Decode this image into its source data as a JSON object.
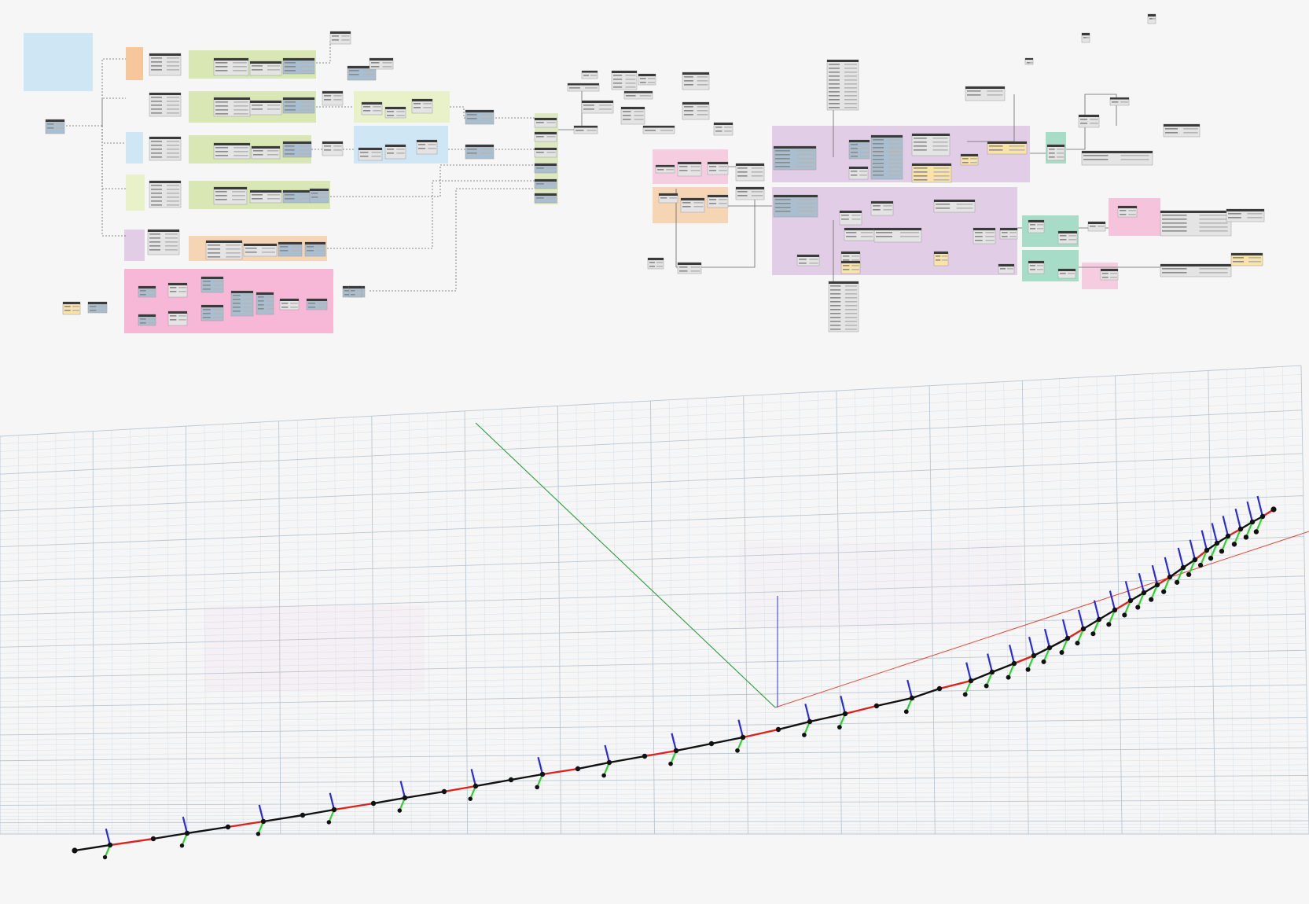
{
  "app": {
    "title": "",
    "view_modes": [
      "graph-view",
      "background-3d-preview"
    ]
  },
  "colors": {
    "canvas_bg": "#f6f6f6",
    "group_green": "#d8e7b4",
    "group_lightgreen": "#e4eec4",
    "group_blue": "#cfe6f4",
    "group_orange": "#f6d5b4",
    "group_pink": "#f6b8d6",
    "group_purple": "#e2cde6",
    "group_teal": "#a7dcc8",
    "group_yellow": "#f9e3a7",
    "node_body": "#e4e4e4",
    "node_header": "#3a3a3a",
    "node_blue": "#a9bfd0",
    "wire": "#555555",
    "grid_major": "#b9c7d3",
    "grid_minor": "#dbe3ea",
    "axis_x": "#e04a3b",
    "axis_y": "#2c9b3b",
    "axis_z": "#2c3bd6",
    "polyline_black": "#111111",
    "polyline_red": "#e0201a",
    "frame_green": "#2fd02f",
    "frame_blue": "#2a2ad8"
  },
  "graph": {
    "icons": [
      "note-icon",
      "node-icon",
      "watch-icon",
      "code-block-icon"
    ]
  },
  "viewport": {
    "icons": [
      "origin-axis-icon",
      "coordinate-system-icon",
      "point-icon"
    ],
    "frame_count": 30
  }
}
